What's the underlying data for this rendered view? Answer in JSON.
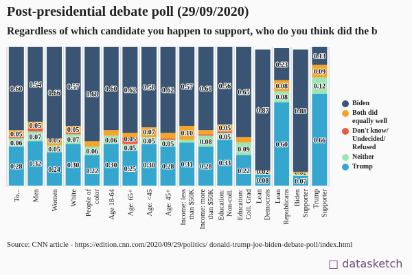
{
  "title": "Post-presidential debate poll (29/09/2020)",
  "subtitle": "Regardless of which candidate you happen to support, who do you think did the b",
  "source": "Source: CNN article - https://edition.cnn.com/2020/09/29/politics/ donald-trump-joe-biden-debate-poll/index.html",
  "logo": "datasketch",
  "chart_data": {
    "type": "bar",
    "stacked": true,
    "orientation": "vertical",
    "ylim": [
      0,
      1
    ],
    "grid": false,
    "legend_position": "right",
    "categories": [
      "To...",
      "Men",
      "Women",
      "White",
      "People of color",
      "Age 18-64",
      "Age: 65+",
      "Age: <45",
      "Age: 45+",
      "Income: less than $50K",
      "Income: more than $50K",
      "Education: Non-coll.",
      "Education: Coll. Grad",
      "Lean Democrats",
      "Lean Republicans",
      "Biden Supporter",
      "Trump Supporter"
    ],
    "series": [
      {
        "name": "Trump",
        "color": "#35a7cf",
        "values": [
          0.28,
          0.32,
          0.24,
          0.3,
          0.22,
          0.3,
          0.25,
          0.3,
          0.28,
          0.31,
          0.28,
          0.33,
          0.22,
          0.08,
          0.6,
          0.07,
          0.66
        ]
      },
      {
        "name": "Neither",
        "color": "#9ce6b3",
        "values": [
          0.06,
          0.07,
          0.05,
          0.07,
          0.06,
          0.06,
          0.05,
          0.05,
          0.05,
          0.02,
          0.08,
          0.05,
          0.09,
          0.01,
          0.08,
          0.02,
          0.12
        ]
      },
      {
        "name": "Don't know/ Undecided/ Refused",
        "color": "#ea5a40",
        "values": [
          0.01,
          0.02,
          0,
          0.01,
          0,
          0,
          0.05,
          0,
          0.01,
          0,
          0.01,
          0.01,
          0,
          0,
          0,
          0,
          0
        ]
      },
      {
        "name": "Both did equally well",
        "color": "#f5a52a",
        "values": [
          0.05,
          0.05,
          0.05,
          0.05,
          0.04,
          0.04,
          0.03,
          0.07,
          0.04,
          0.1,
          0.03,
          0.05,
          0.04,
          0.02,
          0.08,
          0.01,
          0.09
        ]
      },
      {
        "name": "Biden",
        "color": "#3a5573",
        "values": [
          0.6,
          0.54,
          0.66,
          0.57,
          0.68,
          0.6,
          0.62,
          0.58,
          0.62,
          0.57,
          0.6,
          0.56,
          0.65,
          0.87,
          0.23,
          0.88,
          0.13
        ]
      }
    ],
    "data_labels_shown": true
  }
}
